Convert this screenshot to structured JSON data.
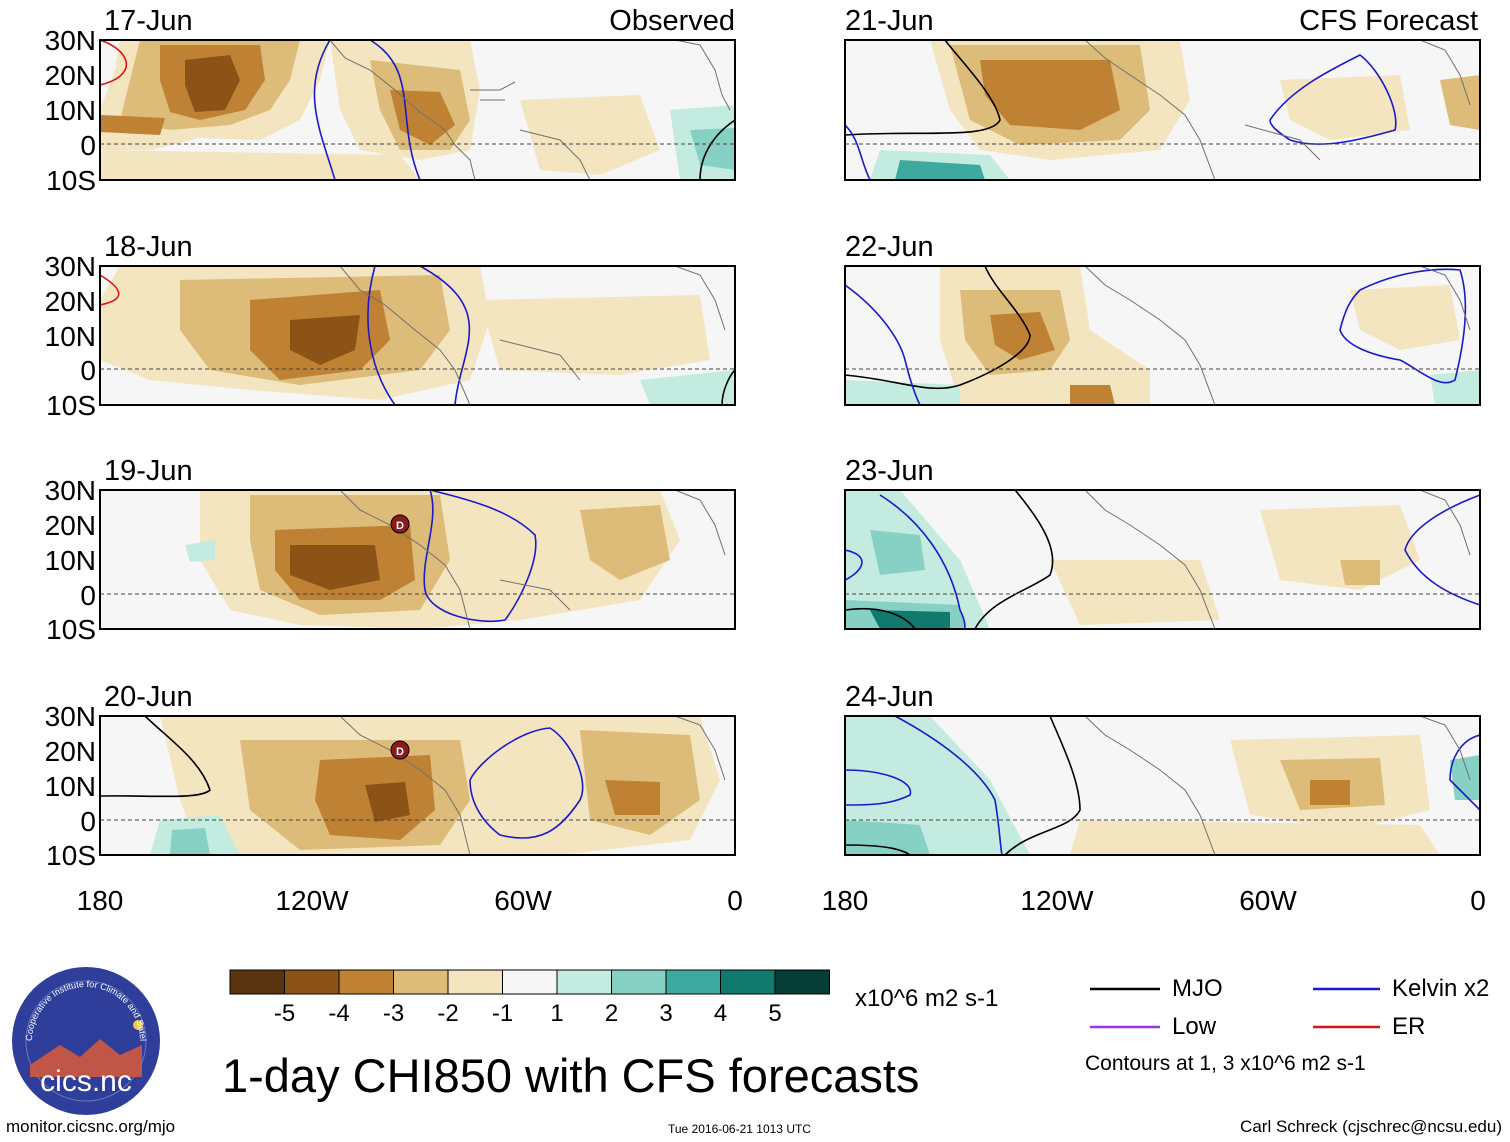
{
  "title": "1-day CHI850 with CFS forecasts",
  "headers": {
    "observed": "Observed",
    "forecast": "CFS Forecast"
  },
  "panels": [
    {
      "date": "17-Jun",
      "column": "observed"
    },
    {
      "date": "18-Jun",
      "column": "observed"
    },
    {
      "date": "19-Jun",
      "column": "observed"
    },
    {
      "date": "20-Jun",
      "column": "observed"
    },
    {
      "date": "21-Jun",
      "column": "forecast"
    },
    {
      "date": "22-Jun",
      "column": "forecast"
    },
    {
      "date": "23-Jun",
      "column": "forecast"
    },
    {
      "date": "24-Jun",
      "column": "forecast"
    }
  ],
  "axes": {
    "lat_labels": [
      "30N",
      "20N",
      "10N",
      "0",
      "10S"
    ],
    "lon_labels": [
      "180",
      "120W",
      "60W",
      "0"
    ]
  },
  "colorbar": {
    "colors": [
      "#5a3410",
      "#8c5316",
      "#bf8133",
      "#ddbb79",
      "#f4e5c1",
      "#f6f6f6",
      "#c4ebe0",
      "#86d1c4",
      "#3ea99f",
      "#0f7a6d",
      "#053e36"
    ],
    "ticks": [
      "-5",
      "-4",
      "-3",
      "-2",
      "-1",
      "1",
      "2",
      "3",
      "4",
      "5"
    ],
    "units": "x10^6 m2 s-1"
  },
  "legend": {
    "items": [
      {
        "label": "MJO",
        "color": "#000000"
      },
      {
        "label": "Kelvin x2",
        "color": "#1a1acc"
      },
      {
        "label": "Low",
        "color": "#9a33e6"
      },
      {
        "label": "ER",
        "color": "#e01010"
      }
    ],
    "note": "Contours at 1, 3 x10^6 m2 s-1"
  },
  "logo_text": "cics.nc",
  "logo_ring": "Cooperative Institute for Climate and Satellites",
  "low_marker": "D",
  "footer": {
    "url": "monitor.cicsnc.org/mjo",
    "timestamp": "Tue 2016-06-21 1013 UTC",
    "credit": "Carl Schreck (cjschrec@ncsu.edu)"
  }
}
